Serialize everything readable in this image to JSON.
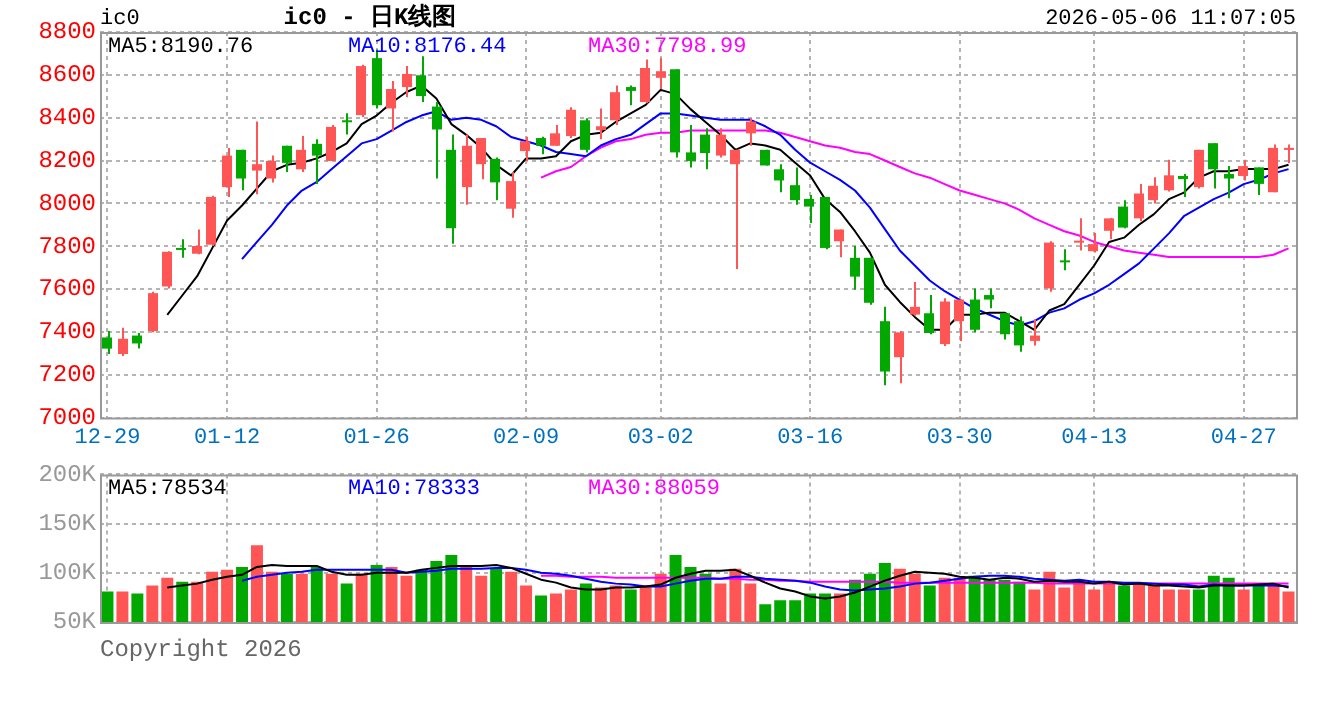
{
  "chart_data": [
    {
      "type": "candlestick",
      "title": "ic0 - 日K线图",
      "subtitle": "2026-05-06 11:07:05",
      "ylabel": "ic0",
      "categories": [
        "12-29",
        null,
        null,
        null,
        null,
        null,
        null,
        null,
        "01-12",
        null,
        null,
        null,
        null,
        null,
        null,
        null,
        null,
        null,
        "01-26",
        null,
        null,
        null,
        null,
        null,
        null,
        null,
        null,
        null,
        "02-09",
        null,
        null,
        null,
        null,
        null,
        null,
        null,
        null,
        "03-02",
        null,
        null,
        null,
        null,
        null,
        null,
        null,
        null,
        null,
        "03-16",
        null,
        null,
        null,
        null,
        null,
        null,
        null,
        null,
        null,
        "03-30",
        null,
        null,
        null,
        null,
        null,
        null,
        null,
        null,
        "04-13",
        null,
        null,
        null,
        null,
        null,
        null,
        null,
        null,
        null,
        "04-27",
        null,
        null,
        null
      ],
      "ohlc": [
        [
          7374,
          7404,
          7297,
          7322
        ],
        [
          7297,
          7420,
          7288,
          7368
        ],
        [
          7383,
          7395,
          7322,
          7346
        ],
        [
          7404,
          7587,
          7398,
          7581
        ],
        [
          7612,
          7777,
          7603,
          7774
        ],
        [
          7792,
          7832,
          7746,
          7786
        ],
        [
          7765,
          7878,
          7762,
          7801
        ],
        [
          7807,
          8036,
          7801,
          8030
        ],
        [
          8076,
          8259,
          8030,
          8223
        ],
        [
          8250,
          8250,
          8061,
          8116
        ],
        [
          8153,
          8382,
          8043,
          8183
        ],
        [
          8116,
          8223,
          8098,
          8198
        ],
        [
          8269,
          8269,
          8146,
          8189
        ],
        [
          8159,
          8314,
          8146,
          8250
        ],
        [
          8278,
          8299,
          8091,
          8223
        ],
        [
          8198,
          8366,
          8198,
          8357
        ],
        [
          8388,
          8421,
          8321,
          8382
        ],
        [
          8412,
          8647,
          8403,
          8641
        ],
        [
          8678,
          8718,
          8443,
          8458
        ],
        [
          8443,
          8571,
          8336,
          8534
        ],
        [
          8543,
          8641,
          8495,
          8604
        ],
        [
          8598,
          8687,
          8473,
          8501
        ],
        [
          8452,
          8473,
          8116,
          8345
        ],
        [
          8250,
          8321,
          7811,
          7884
        ],
        [
          8076,
          8321,
          7994,
          8269
        ],
        [
          8183,
          8305,
          8113,
          8305
        ],
        [
          8208,
          8214,
          8015,
          8098
        ],
        [
          7975,
          8146,
          7933,
          8104
        ],
        [
          8244,
          8311,
          8198,
          8290
        ],
        [
          8305,
          8311,
          8229,
          8269
        ],
        [
          8269,
          8366,
          8269,
          8327
        ],
        [
          8314,
          8449,
          8305,
          8437
        ],
        [
          8388,
          8397,
          8238,
          8250
        ],
        [
          8342,
          8443,
          8299,
          8360
        ],
        [
          8388,
          8550,
          8366,
          8519
        ],
        [
          8543,
          8550,
          8458,
          8525
        ],
        [
          8473,
          8672,
          8467,
          8632
        ],
        [
          8586,
          8678,
          8534,
          8617
        ],
        [
          8626,
          8626,
          8214,
          8238
        ],
        [
          8238,
          8366,
          8168,
          8198
        ],
        [
          8321,
          8351,
          8159,
          8235
        ],
        [
          8223,
          8351,
          8214,
          8321
        ],
        [
          8183,
          8250,
          7694,
          8250
        ],
        [
          8327,
          8397,
          8269,
          8382
        ],
        [
          8250,
          8250,
          8177,
          8177
        ],
        [
          8159,
          8183,
          8052,
          8107
        ],
        [
          8085,
          8168,
          7994,
          8015
        ],
        [
          8021,
          8039,
          7908,
          7985
        ],
        [
          8030,
          8030,
          7786,
          7792
        ],
        [
          7823,
          7878,
          7749,
          7878
        ],
        [
          7746,
          7801,
          7597,
          7658
        ],
        [
          7746,
          7746,
          7527,
          7536
        ],
        [
          7450,
          7517,
          7151,
          7215
        ],
        [
          7282,
          7404,
          7160,
          7398
        ],
        [
          7481,
          7633,
          7475,
          7517
        ],
        [
          7487,
          7572,
          7389,
          7395
        ],
        [
          7343,
          7557,
          7334,
          7542
        ],
        [
          7450,
          7551,
          7358,
          7551
        ],
        [
          7551,
          7603,
          7398,
          7410
        ],
        [
          7572,
          7603,
          7511,
          7551
        ],
        [
          7487,
          7487,
          7365,
          7389
        ],
        [
          7450,
          7472,
          7307,
          7337
        ],
        [
          7358,
          7459,
          7337,
          7383
        ],
        [
          7603,
          7823,
          7588,
          7817
        ],
        [
          7734,
          7786,
          7688,
          7728
        ],
        [
          7817,
          7930,
          7780,
          7826
        ],
        [
          7777,
          7862,
          7771,
          7810
        ],
        [
          7872,
          7930,
          7832,
          7930
        ],
        [
          7985,
          8015,
          7884,
          7887
        ],
        [
          7930,
          8091,
          7917,
          8046
        ],
        [
          8015,
          8122,
          8000,
          8082
        ],
        [
          8061,
          8204,
          8055,
          8131
        ],
        [
          8128,
          8137,
          8030,
          8113
        ],
        [
          8076,
          8250,
          8070,
          8250
        ],
        [
          8281,
          8281,
          8070,
          8159
        ],
        [
          8137,
          8174,
          8024,
          8116
        ],
        [
          8128,
          8204,
          8107,
          8174
        ],
        [
          8168,
          8168,
          8039,
          8091
        ],
        [
          8052,
          8275,
          8052,
          8259
        ],
        [
          8250,
          8275,
          8189,
          8259
        ]
      ],
      "colors": [
        "#00a800",
        "#ff5555",
        "#00a800",
        "#ff5555",
        "#ff5555",
        "#00a800",
        "#ff5555",
        "#ff5555",
        "#ff5555",
        "#00a800",
        "#ff5555",
        "#ff5555",
        "#00a800",
        "#ff5555",
        "#00a800",
        "#ff5555",
        "#00a800",
        "#ff5555",
        "#00a800",
        "#ff5555",
        "#ff5555",
        "#00a800",
        "#00a800",
        "#00a800",
        "#ff5555",
        "#ff5555",
        "#00a800",
        "#ff5555",
        "#ff5555",
        "#00a800",
        "#ff5555",
        "#ff5555",
        "#00a800",
        "#ff5555",
        "#ff5555",
        "#00a800",
        "#ff5555",
        "#ff5555",
        "#00a800",
        "#00a800",
        "#00a800",
        "#ff5555",
        "#ff5555",
        "#ff5555",
        "#00a800",
        "#00a800",
        "#00a800",
        "#00a800",
        "#00a800",
        "#ff5555",
        "#00a800",
        "#00a800",
        "#00a800",
        "#ff5555",
        "#ff5555",
        "#00a800",
        "#ff5555",
        "#ff5555",
        "#00a800",
        "#00a800",
        "#00a800",
        "#00a800",
        "#ff5555",
        "#ff5555",
        "#00a800",
        "#ff5555",
        "#ff5555",
        "#ff5555",
        "#00a800",
        "#ff5555",
        "#ff5555",
        "#ff5555",
        "#00a800",
        "#ff5555",
        "#00a800",
        "#00a800",
        "#ff5555",
        "#00a800",
        "#ff5555",
        "#ff5555"
      ],
      "series": [
        {
          "name": "MA5:8190.76",
          "type": "line",
          "color": "#000000",
          "values": [
            null,
            null,
            null,
            null,
            7480,
            7570,
            7660,
            7790,
            7920,
            7990,
            8070,
            8150,
            8180,
            8190,
            8210,
            8240,
            8280,
            8370,
            8410,
            8470,
            8520,
            8550,
            8490,
            8370,
            8320,
            8260,
            8180,
            8130,
            8210,
            8210,
            8220,
            8290,
            8320,
            8330,
            8380,
            8420,
            8460,
            8530,
            8510,
            8440,
            8380,
            8320,
            8250,
            8280,
            8270,
            8250,
            8190,
            8130,
            8020,
            7960,
            7870,
            7770,
            7620,
            7540,
            7470,
            7410,
            7410,
            7480,
            7480,
            7490,
            7490,
            7450,
            7410,
            7500,
            7530,
            7620,
            7710,
            7820,
            7840,
            7900,
            7950,
            8020,
            8050,
            8120,
            8150,
            8150,
            8160,
            8160,
            8160,
            8180
          ]
        },
        {
          "name": "MA10:8176.44",
          "type": "line",
          "color": "#0000ff",
          "values": [
            null,
            null,
            null,
            null,
            null,
            null,
            null,
            null,
            null,
            7740,
            7820,
            7900,
            7990,
            8060,
            8100,
            8160,
            8220,
            8280,
            8300,
            8340,
            8380,
            8410,
            8430,
            8390,
            8400,
            8390,
            8360,
            8310,
            8290,
            8270,
            8240,
            8230,
            8220,
            8270,
            8300,
            8320,
            8370,
            8420,
            8420,
            8410,
            8400,
            8390,
            8390,
            8390,
            8360,
            8320,
            8250,
            8190,
            8150,
            8110,
            8060,
            7980,
            7880,
            7780,
            7710,
            7640,
            7590,
            7550,
            7510,
            7480,
            7450,
            7430,
            7450,
            7490,
            7510,
            7550,
            7580,
            7620,
            7670,
            7720,
            7790,
            7860,
            7940,
            7980,
            8020,
            8050,
            8090,
            8110,
            8140,
            8160
          ]
        },
        {
          "name": "MA30:7798.99",
          "type": "line",
          "color": "#ff00ff",
          "values": [
            null,
            null,
            null,
            null,
            null,
            null,
            null,
            null,
            null,
            null,
            null,
            null,
            null,
            null,
            null,
            null,
            null,
            null,
            null,
            null,
            null,
            null,
            null,
            null,
            null,
            null,
            null,
            null,
            null,
            8120,
            8150,
            8170,
            8220,
            8260,
            8290,
            8300,
            8320,
            8330,
            8330,
            8340,
            8340,
            8340,
            8340,
            8340,
            8340,
            8330,
            8310,
            8290,
            8270,
            8260,
            8240,
            8230,
            8200,
            8170,
            8140,
            8120,
            8090,
            8060,
            8040,
            8020,
            8000,
            7970,
            7930,
            7900,
            7870,
            7850,
            7820,
            7800,
            7780,
            7770,
            7760,
            7750,
            7750,
            7750,
            7750,
            7750,
            7750,
            7750,
            7760,
            7790
          ]
        }
      ],
      "ylim": [
        7000,
        8800
      ],
      "yticks": [
        7000,
        7200,
        7400,
        7600,
        7800,
        8000,
        8200,
        8400,
        8600,
        8800
      ],
      "grid": true,
      "legend": "top left"
    },
    {
      "type": "bar",
      "categories": [
        null,
        null,
        null,
        null,
        null,
        null,
        null,
        null,
        null,
        null,
        null,
        null,
        null,
        null,
        null,
        null,
        null,
        null,
        null,
        null,
        null,
        null,
        null,
        null,
        null,
        null,
        null,
        null,
        null,
        null,
        null,
        null,
        null,
        null,
        null,
        null,
        null,
        null,
        null,
        null,
        null,
        null,
        null,
        null,
        null,
        null,
        null,
        null,
        null,
        null,
        null,
        null,
        null,
        null,
        null,
        null,
        null,
        null,
        null,
        null,
        null,
        null,
        null,
        null,
        null,
        null,
        null,
        null,
        null,
        null,
        null,
        null,
        null,
        null,
        null,
        null,
        null,
        null,
        null,
        null
      ],
      "series": [
        {
          "type": "bar",
          "colors": [
            "#00a800",
            "#ff5555",
            "#00a800",
            "#ff5555",
            "#ff5555",
            "#00a800",
            "#ff5555",
            "#ff5555",
            "#ff5555",
            "#00a800",
            "#ff5555",
            "#ff5555",
            "#00a800",
            "#ff5555",
            "#00a800",
            "#ff5555",
            "#00a800",
            "#ff5555",
            "#00a800",
            "#ff5555",
            "#ff5555",
            "#00a800",
            "#00a800",
            "#00a800",
            "#ff5555",
            "#ff5555",
            "#00a800",
            "#ff5555",
            "#ff5555",
            "#00a800",
            "#ff5555",
            "#ff5555",
            "#00a800",
            "#ff5555",
            "#ff5555",
            "#00a800",
            "#ff5555",
            "#ff5555",
            "#00a800",
            "#00a800",
            "#00a800",
            "#ff5555",
            "#ff5555",
            "#ff5555",
            "#00a800",
            "#00a800",
            "#00a800",
            "#00a800",
            "#00a800",
            "#ff5555",
            "#00a800",
            "#00a800",
            "#00a800",
            "#ff5555",
            "#ff5555",
            "#00a800",
            "#ff5555",
            "#ff5555",
            "#00a800",
            "#00a800",
            "#00a800",
            "#00a800",
            "#ff5555",
            "#ff5555",
            "#ff5555",
            "#ff5555",
            "#ff5555",
            "#ff5555",
            "#00a800",
            "#ff5555",
            "#ff5555",
            "#ff5555",
            "#ff5555",
            "#00a800",
            "#00a800",
            "#00a800",
            "#ff5555",
            "#00a800",
            "#ff5555",
            "#ff5555"
          ],
          "values": [
            81000,
            81000,
            79000,
            87000,
            95000,
            91000,
            91000,
            101000,
            103000,
            106000,
            128000,
            101000,
            99000,
            99000,
            106000,
            99000,
            89000,
            99000,
            108000,
            106000,
            97000,
            103000,
            112000,
            118000,
            106000,
            97000,
            105000,
            101000,
            87000,
            77000,
            79000,
            83000,
            89000,
            85000,
            87000,
            83000,
            87000,
            99000,
            118000,
            106000,
            99000,
            89000,
            104000,
            89000,
            68000,
            72000,
            72000,
            79000,
            79000,
            79000,
            93000,
            99000,
            110000,
            104000,
            99000,
            87000,
            95000,
            95000,
            97000,
            93000,
            93000,
            91000,
            83000,
            101000,
            85000,
            93000,
            83000,
            91000,
            87000,
            89000,
            87000,
            83000,
            83000,
            83000,
            97000,
            95000,
            83000,
            87000,
            87000,
            81000
          ]
        },
        {
          "name": "MA5:78534",
          "type": "line",
          "color": "#000000",
          "values": [
            null,
            null,
            null,
            null,
            85000,
            87000,
            89000,
            93000,
            96000,
            98000,
            106000,
            108000,
            107000,
            107000,
            107000,
            101000,
            98000,
            98000,
            100000,
            100000,
            100000,
            103000,
            105000,
            107000,
            107000,
            107000,
            108000,
            105000,
            99000,
            93000,
            90000,
            85000,
            83000,
            83000,
            85000,
            85000,
            86000,
            88000,
            95000,
            99000,
            102000,
            102000,
            103000,
            97000,
            90000,
            84000,
            81000,
            76000,
            74000,
            76000,
            80000,
            86000,
            92000,
            97000,
            101000,
            100000,
            99000,
            96000,
            95000,
            93000,
            95000,
            94000,
            91000,
            92000,
            91000,
            91000,
            89000,
            91000,
            88000,
            89000,
            87000,
            87000,
            86000,
            85000,
            87000,
            87000,
            87000,
            88000,
            89000,
            85000
          ]
        },
        {
          "name": "MA10:78333",
          "type": "line",
          "color": "#0000ff",
          "values": [
            null,
            null,
            null,
            null,
            null,
            null,
            null,
            null,
            null,
            92000,
            96000,
            98000,
            100000,
            101000,
            103000,
            103000,
            103000,
            103000,
            103000,
            103000,
            100000,
            101000,
            102000,
            104000,
            104000,
            104000,
            105000,
            105000,
            103000,
            100000,
            99000,
            97000,
            94000,
            91000,
            89000,
            88000,
            86000,
            86000,
            89000,
            92000,
            94000,
            94000,
            96000,
            96000,
            94000,
            93000,
            92000,
            90000,
            86000,
            83000,
            82000,
            83000,
            84000,
            86000,
            89000,
            90000,
            92000,
            94000,
            96000,
            97000,
            97000,
            96000,
            94000,
            93000,
            92000,
            93000,
            91000,
            91000,
            90000,
            90000,
            89000,
            88000,
            88000,
            86000,
            88000,
            87000,
            87000,
            87000,
            87000,
            86000
          ]
        },
        {
          "name": "MA30:88059",
          "type": "line",
          "color": "#ff00ff",
          "values": [
            null,
            null,
            null,
            null,
            null,
            null,
            null,
            null,
            null,
            null,
            null,
            null,
            null,
            null,
            null,
            null,
            null,
            null,
            null,
            null,
            null,
            null,
            null,
            null,
            null,
            null,
            null,
            null,
            null,
            97000,
            97000,
            96000,
            96000,
            96000,
            95000,
            95000,
            95000,
            95000,
            95000,
            95000,
            95000,
            94000,
            94000,
            93000,
            93000,
            92000,
            92000,
            91000,
            91000,
            91000,
            91000,
            91000,
            91000,
            90000,
            90000,
            90000,
            90000,
            90000,
            90000,
            90000,
            90000,
            90000,
            90000,
            89000,
            89000,
            89000,
            89000,
            89000,
            89000,
            89000,
            89000,
            89000,
            89000,
            89000,
            89000,
            89000,
            89000,
            89000,
            89000,
            89000
          ]
        }
      ],
      "ylim": [
        50000,
        200000
      ],
      "yticks": [
        {
          "value": 50000,
          "label": "50K"
        },
        {
          "value": 100000,
          "label": "100K"
        },
        {
          "value": 150000,
          "label": "150K"
        },
        {
          "value": 200000,
          "label": "200K"
        }
      ],
      "grid": true,
      "legend": "top left",
      "tick_labels": "y",
      "annotations": [
        "Copyright 2026"
      ]
    }
  ]
}
